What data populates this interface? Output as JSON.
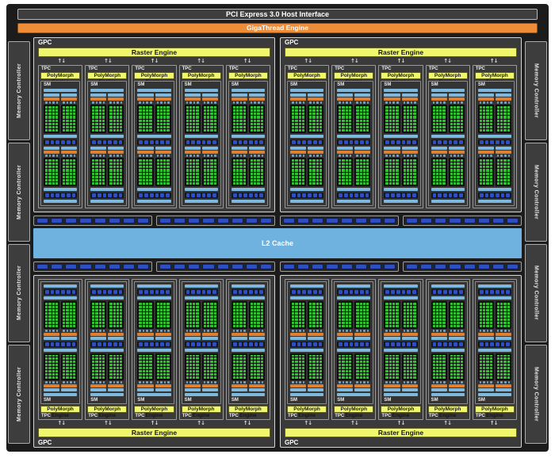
{
  "labels": {
    "pci": "PCI Express 3.0 Host Interface",
    "gigathread": "GigaThread Engine",
    "gpc": "GPC",
    "raster": "Raster Engine",
    "tpc": "TPC",
    "polymorph": "PolyMorph Engine",
    "sm": "SM",
    "l2": "L2 Cache",
    "memory_controller": "Memory Controller",
    "updown_arrows_glyph": "↑↓"
  },
  "structure": {
    "gpcs": [
      {
        "position": "top-left",
        "flipped": false
      },
      {
        "position": "top-right",
        "flipped": false
      },
      {
        "position": "bottom-left",
        "flipped": true
      },
      {
        "position": "bottom-right",
        "flipped": true
      }
    ],
    "tpcs_per_gpc": 5,
    "sms_per_tpc": 1,
    "processing_blocks_per_sm": 2,
    "subcolumns_per_block": 2,
    "core_grid": {
      "columns": 4,
      "rows": 8
    },
    "memory_controllers_per_side": 4,
    "crossbar_groups_per_row": 4,
    "crossbar_pills_per_group": 8,
    "sm_pills_per_row": 6
  },
  "colors": {
    "frame_background": "#1c1c1c",
    "gigathread_orange": "#ee8c38",
    "engine_yellow": "#f1f76d",
    "light_blue_bar": "#7db8de",
    "sm_orange_bar": "#e0802e",
    "core_green": "#2fc42f",
    "pill_blue": "#2e4fc4",
    "l2_blue": "#6fb2e0"
  }
}
